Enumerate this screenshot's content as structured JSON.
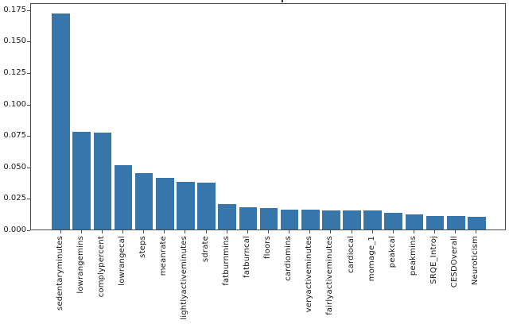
{
  "figure": {
    "background": "#ffffff",
    "title_clipped": true,
    "title_fragment_note": "only the descender of one title character is visible at the very top edge"
  },
  "chart_data": {
    "type": "bar",
    "title": "",
    "xlabel": "",
    "ylabel": "",
    "grid": false,
    "legend": null,
    "x_tick_rotation": 90,
    "bar_color": "#3776ab",
    "spine_color": "#4a4a4a",
    "text_color": "#1a1a1a",
    "ylim": [
      0,
      0.1806
    ],
    "yticks": [
      0,
      0.025,
      0.05,
      0.075,
      0.1,
      0.125,
      0.15,
      0.175
    ],
    "ytick_labels": [
      "0.000",
      "0.025",
      "0.050",
      "0.075",
      "0.100",
      "0.125",
      "0.150",
      "0.175"
    ],
    "categories": [
      "sedentaryminutes",
      "lowrangemins",
      "complypercent",
      "lowrangecal",
      "steps",
      "meanrate",
      "lightlyactiveminutes",
      "sdrate",
      "fatburnmins",
      "fatburncal",
      "floors",
      "cardiomins",
      "veryactiveminutes",
      "fairlyactiveminutes",
      "cardiocal",
      "momage_1",
      "peakcal",
      "peakmins",
      "SRQE_Introj",
      "CESDOverall",
      "Neuroticism"
    ],
    "values": [
      0.172,
      0.078,
      0.077,
      0.051,
      0.045,
      0.041,
      0.038,
      0.037,
      0.02,
      0.018,
      0.017,
      0.016,
      0.016,
      0.015,
      0.015,
      0.015,
      0.013,
      0.012,
      0.011,
      0.011,
      0.01
    ]
  }
}
